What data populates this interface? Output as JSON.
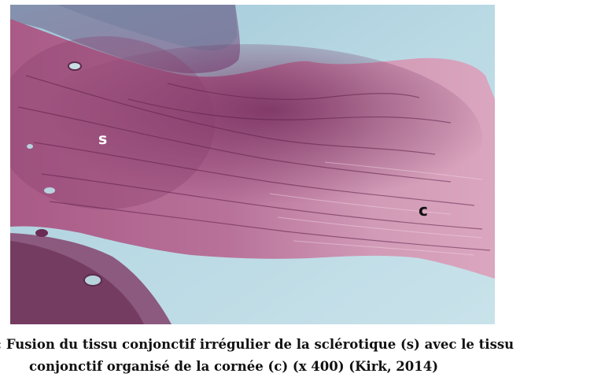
{
  "figure": {
    "labels": {
      "sclera": "s",
      "cornea": "c"
    },
    "colors": {
      "background_blue": "#a9cdda",
      "tissue_pink": "#c07a9c",
      "cornea_pink": "#d59db7",
      "dense_purple": "#7a2f5e"
    }
  },
  "caption": {
    "line1": ": Fusion du tissu conjonctif irrégulier de la sclérotique (s) avec le tissu",
    "line2": "conjonctif organisé de la cornée (c) (x 400) (Kirk, 2014)"
  }
}
